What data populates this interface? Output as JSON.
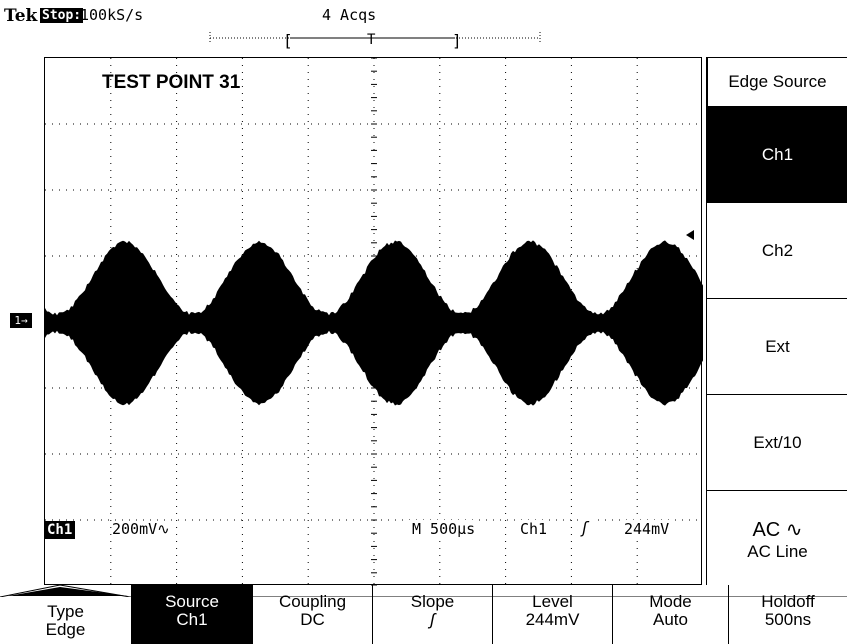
{
  "status": {
    "brand": "Tek",
    "run_state": "Stop:",
    "sample_rate": "100kS/s",
    "acquisitions": "4 Acqs"
  },
  "screen": {
    "label": "TEST POINT 31",
    "channel_marker": "1→"
  },
  "readouts": {
    "channel": "Ch1",
    "vertical_scale": "200mV∿",
    "timebase": "M 500µs",
    "trigger_source": "Ch1",
    "trigger_slope": "ʃ",
    "trigger_level": "244mV"
  },
  "side_menu": {
    "title": "Edge Source",
    "items": [
      {
        "label": "Ch1",
        "selected": true
      },
      {
        "label": "Ch2",
        "selected": false
      },
      {
        "label": "Ext",
        "selected": false
      },
      {
        "label": "Ext/10",
        "selected": false
      },
      {
        "label": "AC Line",
        "icon": "AC ∿",
        "selected": false
      }
    ]
  },
  "bottom_menu": [
    {
      "line1": "Type",
      "line2": "Edge",
      "selected": false
    },
    {
      "line1": "Source",
      "line2": "Ch1",
      "selected": true
    },
    {
      "line1": "Coupling",
      "line2": "DC",
      "selected": false
    },
    {
      "line1": "Slope",
      "line2": "ʃ",
      "selected": false
    },
    {
      "line1": "Level",
      "line2": "244mV",
      "selected": false
    },
    {
      "line1": "Mode",
      "line2": "Auto",
      "selected": false
    },
    {
      "line1": "Holdoff",
      "line2": "500ns",
      "selected": false
    }
  ],
  "colors": {
    "trace": "#000000",
    "background": "#ffffff",
    "selected_bg": "#000000"
  }
}
